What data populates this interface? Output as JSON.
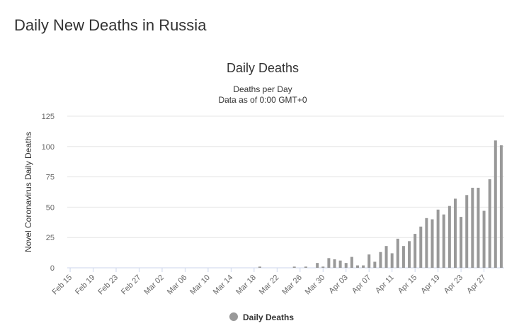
{
  "page_title": "Daily New Deaths in Russia",
  "chart_data": {
    "type": "bar",
    "title": "Daily Deaths",
    "subtitle": [
      "Deaths per Day",
      "Data as of 0:00 GMT+0"
    ],
    "y_label": "Novel Coronavirus Daily Deaths",
    "categories": [
      "Feb 15",
      null,
      null,
      null,
      "Feb 19",
      null,
      null,
      null,
      "Feb 23",
      null,
      null,
      null,
      "Feb 27",
      null,
      null,
      null,
      "Mar 02",
      null,
      null,
      null,
      "Mar 06",
      null,
      null,
      null,
      "Mar 10",
      null,
      null,
      null,
      "Mar 14",
      null,
      null,
      null,
      "Mar 18",
      null,
      null,
      null,
      "Mar 22",
      null,
      null,
      null,
      "Mar 26",
      null,
      null,
      null,
      "Mar 30",
      null,
      null,
      null,
      "Apr 03",
      null,
      null,
      null,
      "Apr 07",
      null,
      null,
      null,
      "Apr 11",
      null,
      null,
      null,
      "Apr 15",
      null,
      null,
      null,
      "Apr 19",
      null,
      null,
      null,
      "Apr 23",
      null,
      null,
      null,
      "Apr 27",
      null,
      null,
      null
    ],
    "series": [
      {
        "name": "Daily Deaths",
        "color": "#999999",
        "values": [
          0,
          0,
          0,
          0,
          0,
          0,
          0,
          0,
          0,
          0,
          0,
          0,
          0,
          0,
          0,
          0,
          0,
          0,
          0,
          0,
          0,
          0,
          0,
          0,
          0,
          0,
          0,
          0,
          0,
          0,
          0,
          0,
          0,
          1,
          0,
          0,
          0,
          0,
          0,
          1,
          0,
          1,
          0,
          4,
          1,
          8,
          7,
          6,
          4,
          9,
          2,
          2,
          11,
          5,
          13,
          18,
          12,
          24,
          18,
          22,
          28,
          34,
          41,
          40,
          48,
          44,
          51,
          57,
          42,
          60,
          66,
          66,
          47,
          73,
          105,
          101
        ]
      }
    ],
    "ylim": [
      0,
      125
    ],
    "yticks": [
      0,
      25,
      50,
      75,
      100,
      125
    ],
    "grid": true,
    "legend": "bottom"
  }
}
